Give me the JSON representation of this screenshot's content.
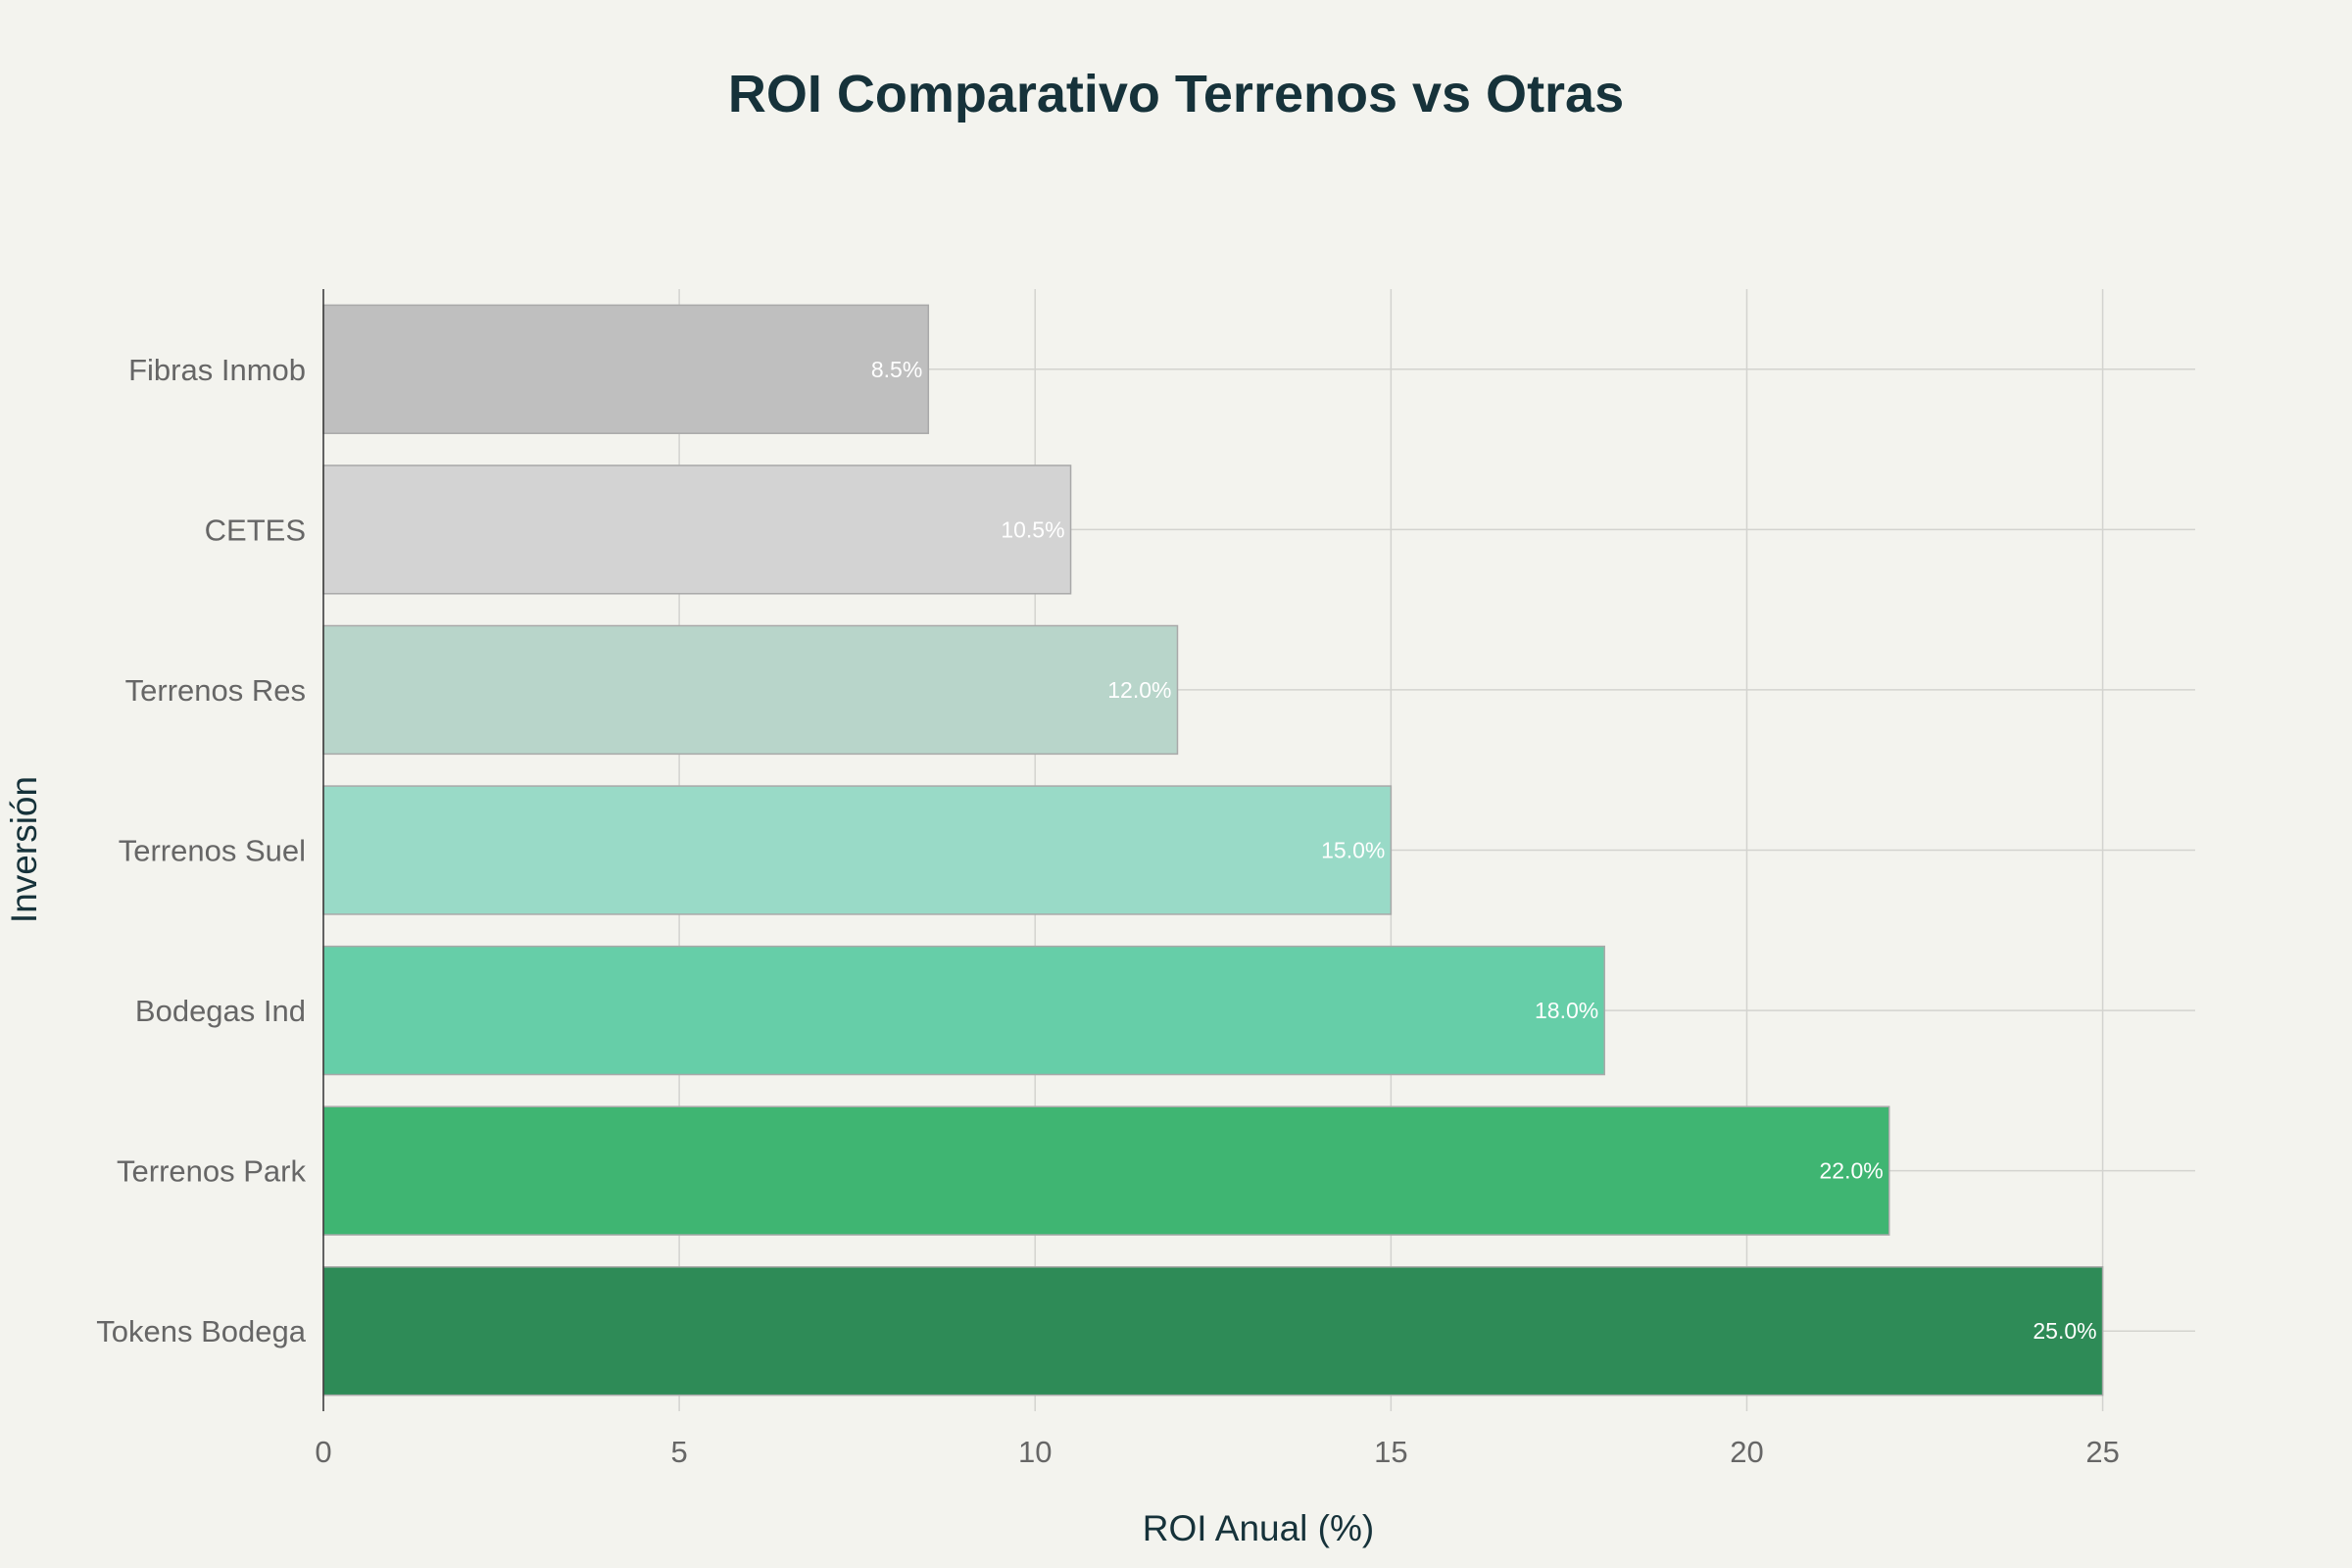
{
  "chart_data": {
    "type": "bar",
    "orientation": "horizontal",
    "title": "ROI Comparativo Terrenos vs Otras",
    "xlabel": "ROI Anual (%)",
    "ylabel": "Inversión",
    "xlim": [
      0,
      26.3
    ],
    "xticks": [
      0,
      5,
      10,
      15,
      20,
      25
    ],
    "grid": true,
    "legend": "none",
    "categories": [
      "Fibras Inmob",
      "CETES",
      "Terrenos Res",
      "Terrenos Suel",
      "Bodegas Ind",
      "Terrenos Park",
      "Tokens Bodega"
    ],
    "values": [
      8.5,
      10.5,
      12.0,
      15.0,
      18.0,
      22.0,
      25.0
    ],
    "data_labels": [
      "8.5%",
      "10.5%",
      "12.0%",
      "15.0%",
      "18.0%",
      "22.0%",
      "25.0%"
    ],
    "colors": [
      "#bfbfbf",
      "#d3d3d3",
      "#b8d5ca",
      "#99dac7",
      "#66cea8",
      "#3fb572",
      "#2e8b57"
    ]
  },
  "colors": {
    "background": "#f3f3ee",
    "title": "#16323a",
    "tick_text": "#666666",
    "grid": "#d3d3cf",
    "axis_line": "#333333",
    "bar_edge": "#a9a9a9",
    "data_label_text": "#ffffff"
  }
}
